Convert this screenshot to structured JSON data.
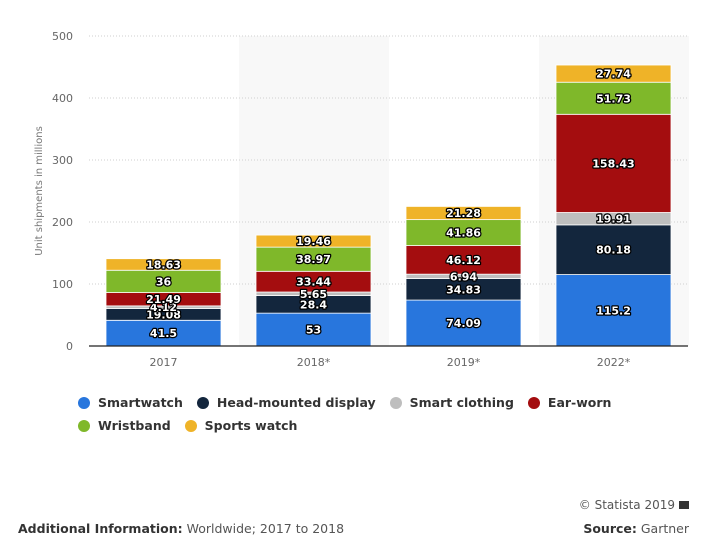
{
  "chart_data": {
    "type": "bar",
    "stacked": true,
    "title": "",
    "xlabel": "",
    "ylabel": "Unit shipments in millions",
    "ylim": [
      0,
      500
    ],
    "yticks": [
      0,
      100,
      200,
      300,
      400,
      500
    ],
    "grid": true,
    "legend_position": "bottom",
    "categories": [
      "2017",
      "2018*",
      "2019*",
      "2022*"
    ],
    "forecast_categories": [
      "2018*",
      "2022*"
    ],
    "series": [
      {
        "name": "Smartwatch",
        "color": "#2876dd",
        "values": [
          41.5,
          53,
          74.09,
          115.2
        ]
      },
      {
        "name": "Head-mounted display",
        "color": "#13263d",
        "values": [
          19.08,
          28.4,
          34.83,
          80.18
        ]
      },
      {
        "name": "Smart clothing",
        "color": "#bebebe",
        "values": [
          4.12,
          5.65,
          6.94,
          19.91
        ]
      },
      {
        "name": "Ear-worn",
        "color": "#a40d0f",
        "values": [
          21.49,
          33.44,
          46.12,
          158.43
        ]
      },
      {
        "name": "Wristband",
        "color": "#7fb82a",
        "values": [
          36,
          38.97,
          41.86,
          51.73
        ]
      },
      {
        "name": "Sports watch",
        "color": "#efb328",
        "values": [
          18.63,
          19.46,
          21.28,
          27.74
        ]
      }
    ],
    "data_labels": [
      [
        "41.5",
        "53",
        "74.09",
        "115.2"
      ],
      [
        "19.08",
        "28.4",
        "34.83",
        "80.18"
      ],
      [
        "4.12",
        "5.65",
        "6.94",
        "19.91"
      ],
      [
        "21.49",
        "33.44",
        "46.12",
        "158.43"
      ],
      [
        "36",
        "38.97",
        "41.86",
        "51.73"
      ],
      [
        "18.63",
        "19.46",
        "21.28",
        "27.74"
      ]
    ]
  },
  "footer": {
    "copyright": "© Statista 2019",
    "flag_icon": "flag-icon",
    "additional_info_label": "Additional Information:",
    "additional_info_value": " Worldwide; 2017 to 2018",
    "source_label": "Source:",
    "source_value": " Gartner"
  }
}
